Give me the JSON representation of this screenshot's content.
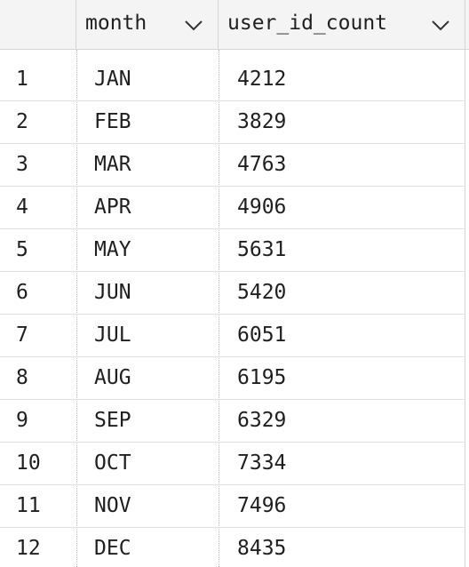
{
  "columns": {
    "index_label": "",
    "month_label": "month",
    "count_label": "user_id_count"
  },
  "rows": [
    {
      "index": "1",
      "month": "JAN",
      "user_id_count": "4212"
    },
    {
      "index": "2",
      "month": "FEB",
      "user_id_count": "3829"
    },
    {
      "index": "3",
      "month": "MAR",
      "user_id_count": "4763"
    },
    {
      "index": "4",
      "month": "APR",
      "user_id_count": "4906"
    },
    {
      "index": "5",
      "month": "MAY",
      "user_id_count": "5631"
    },
    {
      "index": "6",
      "month": "JUN",
      "user_id_count": "5420"
    },
    {
      "index": "7",
      "month": "JUL",
      "user_id_count": "6051"
    },
    {
      "index": "8",
      "month": "AUG",
      "user_id_count": "6195"
    },
    {
      "index": "9",
      "month": "SEP",
      "user_id_count": "6329"
    },
    {
      "index": "10",
      "month": "OCT",
      "user_id_count": "7334"
    },
    {
      "index": "11",
      "month": "NOV",
      "user_id_count": "7496"
    },
    {
      "index": "12",
      "month": "DEC",
      "user_id_count": "8435"
    }
  ],
  "icons": {
    "sort": "chevron-down-icon"
  },
  "colors": {
    "header_bg": "#f4f4f4",
    "text": "#1f1f1f",
    "grid_line": "#d4d4d4"
  }
}
